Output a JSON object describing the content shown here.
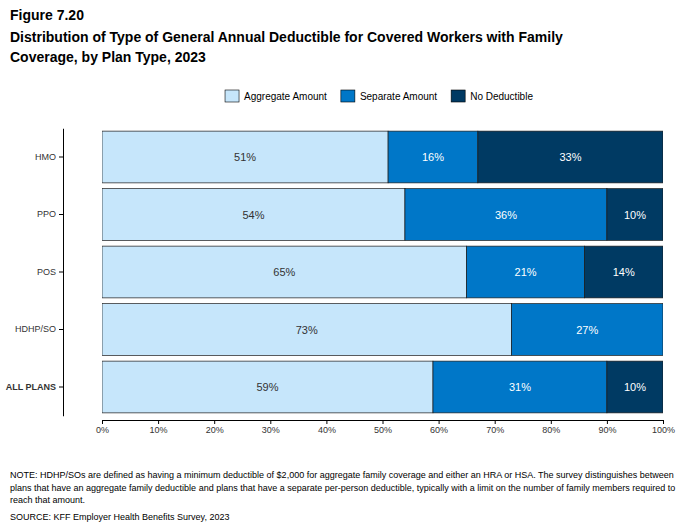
{
  "chart_data": {
    "type": "bar",
    "orientation": "horizontal",
    "stacked": true,
    "data_labels": true,
    "legend": "top",
    "grid": false,
    "title": "Distribution of Type of General Annual Deductible for Covered Workers with Family Coverage, by Plan Type, 2023",
    "annotations": {
      "figure": "Figure 7.20",
      "note": "NOTE: HDHP/SOs are defined as having a minimum deductible of $2,000 for aggregate family coverage and either an HRA or HSA. The survey distinguishes between plans that have an aggregate family deductible and plans that have a separate per-person deductible, typically with a limit on the number of family members required to reach that amount.",
      "source": "SOURCE: KFF Employer Health Benefits Survey, 2023"
    },
    "categories": [
      "HMO",
      "PPO",
      "POS",
      "HDHP/SO",
      "ALL PLANS"
    ],
    "series": [
      {
        "name": "Aggregate Amount",
        "color": "#c6e6fb",
        "values": [
          51,
          54,
          65,
          73,
          59
        ],
        "value_labels": [
          "51%",
          "54%",
          "65%",
          "73%",
          "59%"
        ]
      },
      {
        "name": "Separate Amount",
        "color": "#0077c8",
        "values": [
          16,
          36,
          21,
          27,
          31
        ],
        "value_labels": [
          "16%",
          "36%",
          "21%",
          "27%",
          "31%"
        ]
      },
      {
        "name": "No Deductible",
        "color": "#003a63",
        "values": [
          33,
          10,
          14,
          null,
          10
        ],
        "value_labels": [
          "33%",
          "10%",
          "14%",
          null,
          "10%"
        ]
      }
    ],
    "xlim": [
      0,
      100
    ],
    "xticks": [
      {
        "value": 0,
        "label": "0%"
      },
      {
        "value": 10,
        "label": "10%"
      },
      {
        "value": 20,
        "label": "20%"
      },
      {
        "value": 30,
        "label": "30%"
      },
      {
        "value": 40,
        "label": "40%"
      },
      {
        "value": 50,
        "label": "50%"
      },
      {
        "value": 60,
        "label": "60%"
      },
      {
        "value": 70,
        "label": "70%"
      },
      {
        "value": 80,
        "label": "80%"
      },
      {
        "value": 90,
        "label": "90%"
      },
      {
        "value": 100,
        "label": "100%"
      }
    ]
  }
}
